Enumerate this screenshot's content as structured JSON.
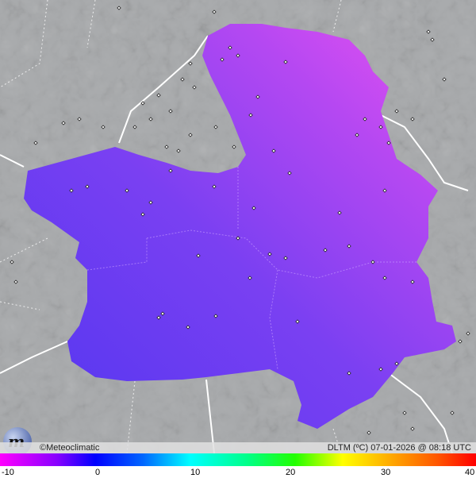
{
  "map": {
    "region_fill_colors": [
      "#5a3cf0",
      "#9a45f0",
      "#e050f0"
    ],
    "background_color": "#a9abad"
  },
  "footer": {
    "copyright": "©Meteoclimatic",
    "variable_stamp": "DLTM (ºC)  07-01-2026 @ 08:18 UTC"
  },
  "legend": {
    "unit": "ºC",
    "min": -10,
    "max": 40,
    "ticks": [
      "-10",
      "0",
      "10",
      "20",
      "30",
      "40"
    ]
  }
}
